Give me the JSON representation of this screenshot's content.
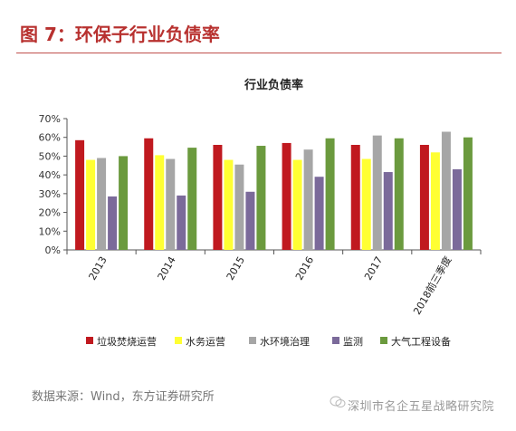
{
  "figure": {
    "title": "图 7：环保子行业负债率",
    "source": "数据来源：Wind，东方证券研究所",
    "watermark": "深圳市名企五星战略研究院"
  },
  "chart_data": {
    "type": "bar",
    "title": "行业负债率",
    "xlabel": "",
    "ylabel": "",
    "ylim": [
      0,
      70
    ],
    "ytick_step": 10,
    "ytick_format": "percent",
    "grid": false,
    "legend_position": "bottom",
    "categories": [
      "2013",
      "2014",
      "2015",
      "2016",
      "2017",
      "2018前三季度"
    ],
    "series": [
      {
        "name": "垃圾焚烧运营",
        "color": "#c0191f",
        "values": [
          58.5,
          59.5,
          56,
          57,
          56,
          56
        ]
      },
      {
        "name": "水务运营",
        "color": "#ffff33",
        "values": [
          48,
          50.5,
          48,
          48,
          48.5,
          52
        ]
      },
      {
        "name": "水环境治理",
        "color": "#a6a6a6",
        "values": [
          49,
          48.5,
          45.5,
          53.5,
          61,
          63
        ]
      },
      {
        "name": "监测",
        "color": "#7b6a9a",
        "values": [
          28.5,
          29,
          31,
          39,
          41.5,
          43
        ]
      },
      {
        "name": "大气工程设备",
        "color": "#6b9a3e",
        "values": [
          50,
          54.5,
          55.5,
          59.5,
          59.5,
          60
        ]
      }
    ]
  }
}
